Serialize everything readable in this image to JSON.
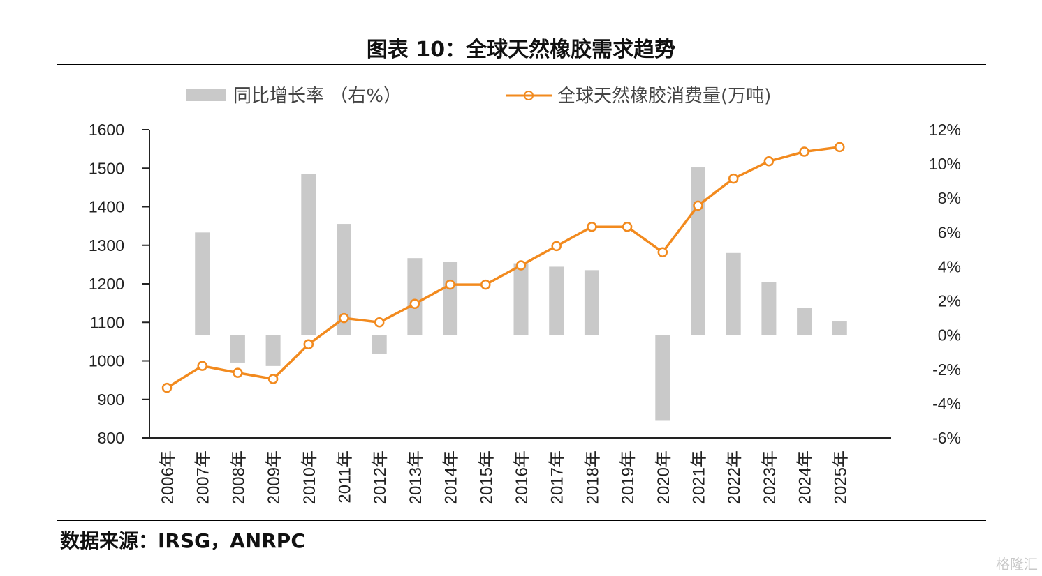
{
  "title": "图表 10：全球天然橡胶需求趋势",
  "source": "数据来源：IRSG，ANRPC",
  "watermark": "格隆汇",
  "colors": {
    "bar": "#c9c9c9",
    "line": "#f28a1e",
    "axis": "#222222"
  },
  "chart_data": {
    "type": "bar",
    "categories": [
      "2006年",
      "2007年",
      "2008年",
      "2009年",
      "2010年",
      "2011年",
      "2012年",
      "2013年",
      "2014年",
      "2015年",
      "2016年",
      "2017年",
      "2018年",
      "2019年",
      "2020年",
      "2021年",
      "2022年",
      "2023年",
      "2024年",
      "2025年"
    ],
    "series": [
      {
        "name": "同比增长率 （右%）",
        "type": "bar",
        "axis": "right",
        "values": [
          null,
          6.0,
          -1.6,
          -1.8,
          9.4,
          6.5,
          -1.1,
          4.5,
          4.3,
          null,
          4.2,
          4.0,
          3.8,
          null,
          -5.0,
          9.8,
          4.8,
          3.1,
          1.6,
          0.8
        ]
      },
      {
        "name": "全球天然橡胶消费量(万吨)",
        "type": "line",
        "axis": "left",
        "values": [
          930,
          987,
          969,
          953,
          1043,
          1111,
          1100,
          1148,
          1198,
          1198,
          1248,
          1298,
          1348,
          1348,
          1282,
          1403,
          1473,
          1518,
          1543,
          1555
        ]
      }
    ],
    "y_left": {
      "ylim": [
        800,
        1600
      ],
      "ticks": [
        "800",
        "900",
        "1000",
        "1100",
        "1200",
        "1300",
        "1400",
        "1500",
        "1600"
      ]
    },
    "y_right": {
      "ylim": [
        -6,
        12
      ],
      "ticks": [
        "-6%",
        "-4%",
        "-2%",
        "0%",
        "2%",
        "4%",
        "6%",
        "8%",
        "10%",
        "12%"
      ]
    },
    "legend_position": "top",
    "grid": false
  }
}
